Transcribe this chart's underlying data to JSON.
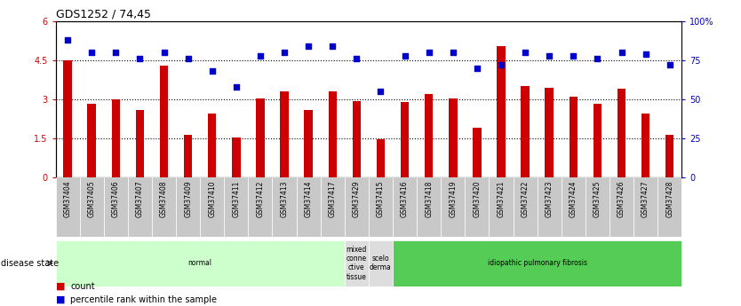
{
  "title": "GDS1252 / 74,45",
  "samples": [
    "GSM37404",
    "GSM37405",
    "GSM37406",
    "GSM37407",
    "GSM37408",
    "GSM37409",
    "GSM37410",
    "GSM37411",
    "GSM37412",
    "GSM37413",
    "GSM37414",
    "GSM37417",
    "GSM37429",
    "GSM37415",
    "GSM37416",
    "GSM37418",
    "GSM37419",
    "GSM37420",
    "GSM37421",
    "GSM37422",
    "GSM37423",
    "GSM37424",
    "GSM37425",
    "GSM37426",
    "GSM37427",
    "GSM37428"
  ],
  "counts": [
    4.5,
    2.85,
    3.0,
    2.6,
    4.3,
    1.65,
    2.45,
    1.55,
    3.05,
    3.3,
    2.6,
    3.3,
    2.95,
    1.48,
    2.9,
    3.2,
    3.05,
    1.9,
    5.05,
    3.5,
    3.45,
    3.1,
    2.85,
    3.4,
    2.45,
    1.65
  ],
  "percentiles": [
    88,
    80,
    80,
    76,
    80,
    76,
    68,
    58,
    78,
    80,
    84,
    84,
    76,
    55,
    78,
    80,
    80,
    70,
    72,
    80,
    78,
    78,
    76,
    80,
    79,
    72
  ],
  "bar_color": "#cc0000",
  "dot_color": "#0000cc",
  "ylim_left": [
    0,
    6
  ],
  "ylim_right": [
    0,
    100
  ],
  "yticks_left": [
    0,
    1.5,
    3.0,
    4.5,
    6.0
  ],
  "ytick_labels_left": [
    "0",
    "1.5",
    "3",
    "4.5",
    "6"
  ],
  "yticks_right": [
    0,
    25,
    50,
    75,
    100
  ],
  "ytick_labels_right": [
    "0",
    "25",
    "50",
    "75",
    "100%"
  ],
  "hlines": [
    1.5,
    3.0,
    4.5
  ],
  "disease_groups": [
    {
      "label": "normal",
      "start": 0,
      "end": 12,
      "color": "#ccffcc"
    },
    {
      "label": "mixed\nconne\nctive\ntissue",
      "start": 12,
      "end": 13,
      "color": "#dddddd"
    },
    {
      "label": "scelo\nderma",
      "start": 13,
      "end": 14,
      "color": "#dddddd"
    },
    {
      "label": "idiopathic pulmonary fibrosis",
      "start": 14,
      "end": 26,
      "color": "#55cc55"
    }
  ],
  "disease_state_label": "disease state",
  "legend_count_label": "count",
  "legend_percentile_label": "percentile rank within the sample",
  "bar_width": 0.35,
  "bg_color": "#ffffff",
  "title_fontsize": 9,
  "tick_fontsize": 7,
  "label_fontsize": 7
}
